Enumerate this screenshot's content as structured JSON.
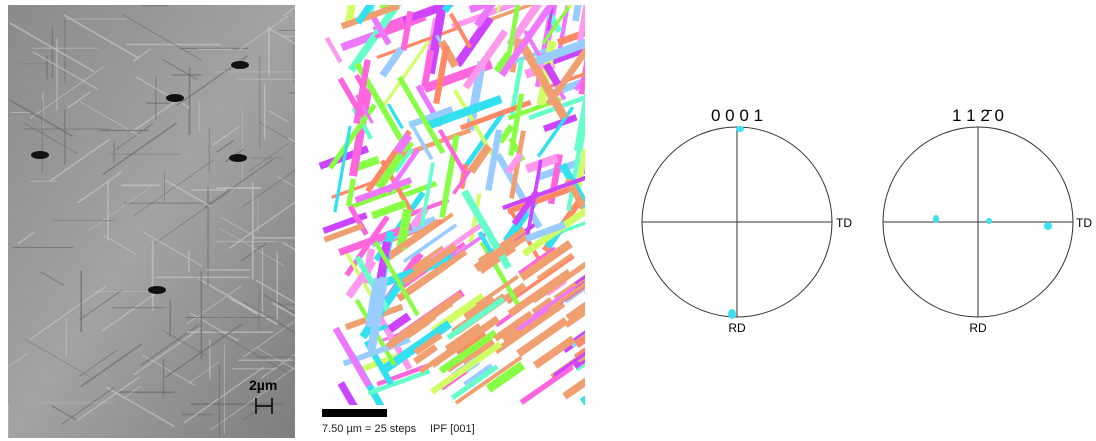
{
  "sem_image": {
    "scale_label": "2µm"
  },
  "ebsd_map": {
    "scale_text": "7.50 µm = 25 steps",
    "ipf_text": "IPF [001]"
  },
  "pole_figures": [
    {
      "title": "0 0 0 1",
      "right_label": "TD",
      "bottom_label": "RD"
    },
    {
      "title": "1 1 2̄ 0",
      "right_label": "TD",
      "bottom_label": "RD"
    }
  ]
}
